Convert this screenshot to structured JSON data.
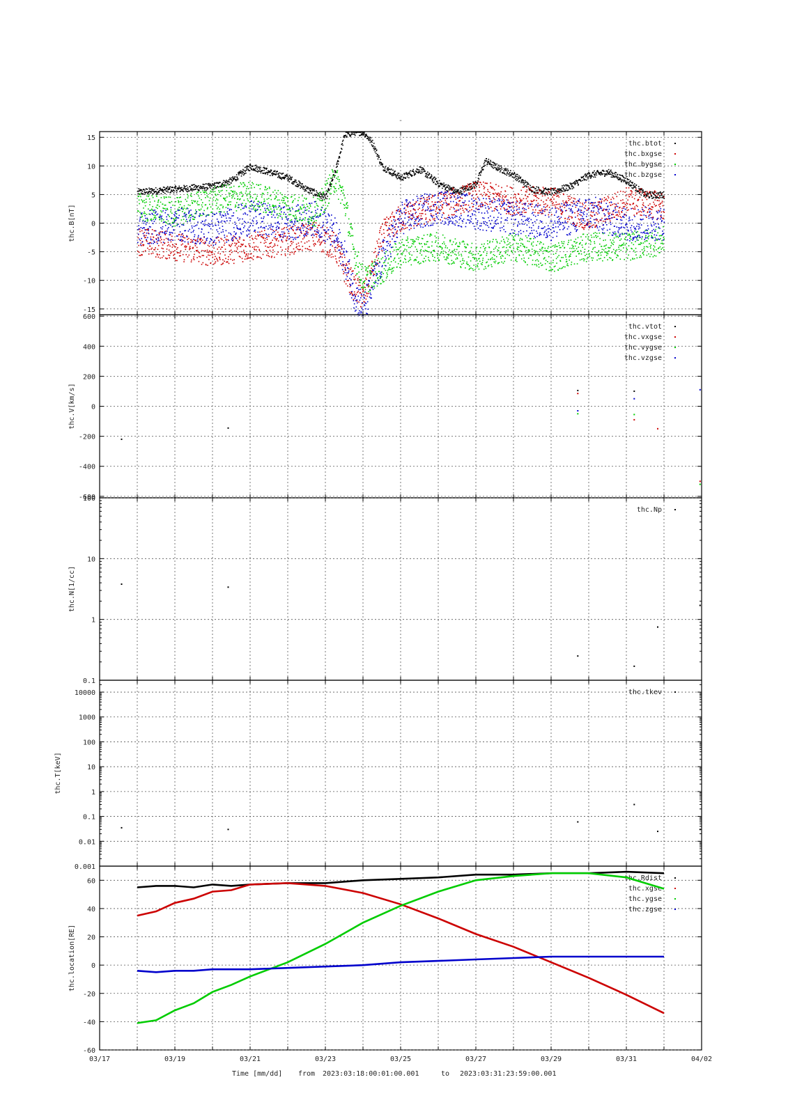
{
  "page": {
    "title": "-",
    "footer": {
      "time_label": "Time [mm/dd]",
      "from_label": "from",
      "start": "2023:03:18:00:01:00.001",
      "to_label": "to",
      "end": "2023:03:31:23:59:00.001"
    }
  },
  "colors": {
    "black": "#000000",
    "red": "#cc0000",
    "green": "#00cc00",
    "blue": "#0000cc",
    "grid": "#555555"
  },
  "chart_data": [
    {
      "type": "scatter",
      "ylabel": "thc.B[nT]",
      "xlabel": "",
      "xlim": [
        "2023-03-17",
        "2023-04-02"
      ],
      "ylim": [
        -16,
        16
      ],
      "yscale": "linear",
      "grid": true,
      "legend": "top-right",
      "yticks": [
        15,
        10,
        5,
        0,
        -5,
        -10,
        -15
      ],
      "ytick_labels": [
        "15",
        "10",
        "5",
        "0",
        "-5",
        "-10",
        "-15"
      ],
      "noisy": true,
      "series": [
        {
          "name": "thc.btot",
          "color": "#000000",
          "noise": 0.6,
          "x": [
            "2023-03-18T00:00",
            "2023-03-19T00:00",
            "2023-03-20T00:00",
            "2023-03-20T12:00",
            "2023-03-21T00:00",
            "2023-03-21T12:00",
            "2023-03-22T00:00",
            "2023-03-22T12:00",
            "2023-03-23T00:00",
            "2023-03-23T06:00",
            "2023-03-23T12:00",
            "2023-03-23T18:00",
            "2023-03-24T00:00",
            "2023-03-24T06:00",
            "2023-03-24T12:00",
            "2023-03-25T00:00",
            "2023-03-25T12:00",
            "2023-03-26T00:00",
            "2023-03-26T12:00",
            "2023-03-27T00:00",
            "2023-03-27T06:00",
            "2023-03-27T12:00",
            "2023-03-28T00:00",
            "2023-03-28T12:00",
            "2023-03-29T00:00",
            "2023-03-29T12:00",
            "2023-03-30T00:00",
            "2023-03-30T12:00",
            "2023-03-31T00:00",
            "2023-03-31T12:00",
            "2023-03-31T23:59"
          ],
          "y": [
            5.5,
            6,
            6.5,
            7.5,
            10,
            9,
            8,
            6,
            4.5,
            9,
            15.5,
            16,
            16,
            14,
            10,
            8,
            9.5,
            7,
            5.5,
            7,
            11,
            10,
            8.5,
            6,
            5.5,
            6.5,
            8.5,
            9,
            7.5,
            5,
            5
          ]
        },
        {
          "name": "thc.bxgse",
          "color": "#cc0000",
          "noise": 2.5,
          "x": [
            "2023-03-18T00:00",
            "2023-03-19T00:00",
            "2023-03-20T00:00",
            "2023-03-21T00:00",
            "2023-03-22T00:00",
            "2023-03-22T18:00",
            "2023-03-23T06:00",
            "2023-03-23T12:00",
            "2023-03-23T18:00",
            "2023-03-24T00:00",
            "2023-03-24T06:00",
            "2023-03-24T12:00",
            "2023-03-25T00:00",
            "2023-03-26T00:00",
            "2023-03-27T00:00",
            "2023-03-28T00:00",
            "2023-03-29T00:00",
            "2023-03-30T00:00",
            "2023-03-31T00:00",
            "2023-03-31T23:59"
          ],
          "y": [
            -3,
            -4,
            -5,
            -4,
            -3,
            -2,
            -4,
            -8,
            -11,
            -13,
            -8,
            -2,
            1,
            3,
            5,
            4,
            4,
            1,
            4,
            3
          ]
        },
        {
          "name": "thc.bygse",
          "color": "#00cc00",
          "noise": 2.5,
          "x": [
            "2023-03-18T00:00",
            "2023-03-19T00:00",
            "2023-03-20T00:00",
            "2023-03-21T00:00",
            "2023-03-22T00:00",
            "2023-03-22T18:00",
            "2023-03-23T06:00",
            "2023-03-23T12:00",
            "2023-03-23T18:00",
            "2023-03-24T00:00",
            "2023-03-24T12:00",
            "2023-03-25T00:00",
            "2023-03-26T00:00",
            "2023-03-27T00:00",
            "2023-03-28T00:00",
            "2023-03-29T00:00",
            "2023-03-30T00:00",
            "2023-03-31T00:00",
            "2023-03-31T23:59"
          ],
          "y": [
            3,
            2,
            4,
            5,
            3,
            2,
            8,
            4,
            -5,
            -10,
            -8,
            -5,
            -4,
            -6,
            -4,
            -6,
            -4,
            -4,
            -3
          ]
        },
        {
          "name": "thc.bzgse",
          "color": "#0000cc",
          "noise": 3,
          "x": [
            "2023-03-18T00:00",
            "2023-03-19T00:00",
            "2023-03-20T00:00",
            "2023-03-21T00:00",
            "2023-03-22T00:00",
            "2023-03-22T18:00",
            "2023-03-23T06:00",
            "2023-03-23T12:00",
            "2023-03-23T18:00",
            "2023-03-24T00:00",
            "2023-03-24T12:00",
            "2023-03-25T00:00",
            "2023-03-26T00:00",
            "2023-03-27T00:00",
            "2023-03-28T00:00",
            "2023-03-29T00:00",
            "2023-03-30T00:00",
            "2023-03-31T00:00",
            "2023-03-31T23:59"
          ],
          "y": [
            -1,
            0,
            -1,
            1,
            0,
            1,
            -2,
            -6,
            -12,
            -15,
            -6,
            1,
            3,
            2,
            1,
            0,
            2,
            0,
            0
          ]
        }
      ]
    },
    {
      "type": "scatter",
      "ylabel": "thc.V[km/s]",
      "xlabel": "",
      "xlim": [
        "2023-03-17",
        "2023-04-02"
      ],
      "ylim": [
        -610,
        610
      ],
      "yscale": "linear",
      "grid": true,
      "legend": "top-right",
      "yticks": [
        600,
        400,
        200,
        0,
        -200,
        -400,
        -600
      ],
      "ytick_labels": [
        "600",
        "400",
        "200",
        "0",
        "-200",
        "-400",
        "-600"
      ],
      "noisy": false,
      "series": [
        {
          "name": "thc.vtot",
          "color": "#000000",
          "x": [
            "2023-03-17T14:00",
            "2023-03-20T10:00",
            "2023-03-29T17:00",
            "2023-03-31T05:00"
          ],
          "y": [
            -220,
            -145,
            105,
            100
          ]
        },
        {
          "name": "thc.vxgse",
          "color": "#cc0000",
          "x": [
            "2023-03-29T17:00",
            "2023-03-31T05:00",
            "2023-03-31T20:00",
            "2023-04-01T23:00"
          ],
          "y": [
            85,
            -90,
            -150,
            -500
          ]
        },
        {
          "name": "thc.vygse",
          "color": "#00cc00",
          "x": [
            "2023-03-29T17:00",
            "2023-03-31T05:00",
            "2023-04-01T23:00"
          ],
          "y": [
            -50,
            -55,
            -520
          ]
        },
        {
          "name": "thc.vzgse",
          "color": "#0000cc",
          "x": [
            "2023-03-29T17:00",
            "2023-03-31T05:00",
            "2023-04-01T23:00"
          ],
          "y": [
            -30,
            50,
            110
          ]
        }
      ]
    },
    {
      "type": "scatter",
      "ylabel": "thc.N[1/cc]",
      "xlabel": "",
      "xlim": [
        "2023-03-17",
        "2023-04-02"
      ],
      "ylim": [
        0.1,
        100
      ],
      "yscale": "log",
      "grid": true,
      "legend": "top-right",
      "yticks": [
        100,
        10,
        1,
        0.1
      ],
      "ytick_labels": [
        "100",
        "10",
        "1",
        "0.1"
      ],
      "noisy": false,
      "series": [
        {
          "name": "thc.Np",
          "color": "#000000",
          "x": [
            "2023-03-17T14:00",
            "2023-03-20T10:00",
            "2023-03-29T17:00",
            "2023-03-31T05:00",
            "2023-03-31T20:00",
            "2023-04-01T23:00"
          ],
          "y": [
            3.8,
            3.4,
            0.25,
            0.17,
            0.75,
            1.7
          ]
        }
      ]
    },
    {
      "type": "scatter",
      "ylabel": "thc.T[keV]",
      "xlabel": "",
      "xlim": [
        "2023-03-17",
        "2023-04-02"
      ],
      "ylim": [
        0.001,
        30000
      ],
      "yscale": "log",
      "grid": true,
      "legend": "top-right",
      "yticks": [
        10000,
        1000,
        100,
        10,
        1,
        0.1,
        0.01,
        0.001
      ],
      "ytick_labels": [
        "10000",
        "1000",
        "100",
        "10",
        "1",
        "0.1",
        "0.01",
        "0.001"
      ],
      "noisy": false,
      "series": [
        {
          "name": "thc.tkev",
          "color": "#000000",
          "x": [
            "2023-03-17T14:00",
            "2023-03-20T10:00",
            "2023-03-29T17:00",
            "2023-03-31T05:00",
            "2023-03-31T20:00",
            "2023-04-01T23:00"
          ],
          "y": [
            0.035,
            0.03,
            0.06,
            0.3,
            0.025,
            0.03
          ]
        }
      ]
    },
    {
      "type": "line",
      "ylabel": "thc.location[RE]",
      "xlabel": "Time [mm/dd]",
      "xlim": [
        "2023-03-17",
        "2023-04-02"
      ],
      "ylim": [
        -60,
        70
      ],
      "yscale": "linear",
      "grid": true,
      "legend": "top-right",
      "yticks": [
        60,
        40,
        20,
        0,
        -20,
        -40,
        -60
      ],
      "ytick_labels": [
        "60",
        "40",
        "20",
        "0",
        "-20",
        "-40",
        "-60"
      ],
      "xticks": [
        "2023-03-17",
        "2023-03-19",
        "2023-03-21",
        "2023-03-23",
        "2023-03-25",
        "2023-03-27",
        "2023-03-29",
        "2023-03-31",
        "2023-04-02"
      ],
      "xtick_labels": [
        "03/17",
        "03/19",
        "03/21",
        "03/23",
        "03/25",
        "03/27",
        "03/29",
        "03/31",
        "04/02"
      ],
      "noisy": false,
      "series": [
        {
          "name": "thc.Rdist",
          "color": "#000000",
          "x": [
            "2023-03-18T00:00",
            "2023-03-18T12:00",
            "2023-03-19T00:00",
            "2023-03-19T12:00",
            "2023-03-20T00:00",
            "2023-03-20T12:00",
            "2023-03-21T00:00",
            "2023-03-22T00:00",
            "2023-03-23T00:00",
            "2023-03-24T00:00",
            "2023-03-25T00:00",
            "2023-03-26T00:00",
            "2023-03-27T00:00",
            "2023-03-28T00:00",
            "2023-03-29T00:00",
            "2023-03-30T00:00",
            "2023-03-31T00:00",
            "2023-03-31T23:59"
          ],
          "y": [
            55,
            56,
            56,
            55,
            57,
            56,
            57,
            58,
            58,
            60,
            61,
            62,
            64,
            64,
            65,
            65,
            66,
            65
          ]
        },
        {
          "name": "thc.xgse",
          "color": "#cc0000",
          "x": [
            "2023-03-18T00:00",
            "2023-03-18T12:00",
            "2023-03-19T00:00",
            "2023-03-19T12:00",
            "2023-03-20T00:00",
            "2023-03-20T12:00",
            "2023-03-21T00:00",
            "2023-03-22T00:00",
            "2023-03-23T00:00",
            "2023-03-24T00:00",
            "2023-03-25T00:00",
            "2023-03-26T00:00",
            "2023-03-27T00:00",
            "2023-03-28T00:00",
            "2023-03-29T00:00",
            "2023-03-30T00:00",
            "2023-03-31T00:00",
            "2023-03-31T23:59"
          ],
          "y": [
            35,
            38,
            44,
            47,
            52,
            53,
            57,
            58,
            56,
            51,
            43,
            33,
            22,
            13,
            2,
            -9,
            -21,
            -34
          ]
        },
        {
          "name": "thc.ygse",
          "color": "#00cc00",
          "x": [
            "2023-03-18T00:00",
            "2023-03-18T12:00",
            "2023-03-19T00:00",
            "2023-03-19T12:00",
            "2023-03-20T00:00",
            "2023-03-20T12:00",
            "2023-03-21T00:00",
            "2023-03-22T00:00",
            "2023-03-23T00:00",
            "2023-03-24T00:00",
            "2023-03-25T00:00",
            "2023-03-26T00:00",
            "2023-03-27T00:00",
            "2023-03-28T00:00",
            "2023-03-29T00:00",
            "2023-03-30T00:00",
            "2023-03-31T00:00",
            "2023-03-31T23:59"
          ],
          "y": [
            -41,
            -39,
            -32,
            -27,
            -19,
            -14,
            -8,
            2,
            15,
            30,
            42,
            52,
            60,
            63,
            65,
            65,
            62,
            54
          ]
        },
        {
          "name": "thc.zgse",
          "color": "#0000cc",
          "x": [
            "2023-03-18T00:00",
            "2023-03-18T12:00",
            "2023-03-19T00:00",
            "2023-03-19T12:00",
            "2023-03-20T00:00",
            "2023-03-20T12:00",
            "2023-03-21T00:00",
            "2023-03-22T00:00",
            "2023-03-23T00:00",
            "2023-03-24T00:00",
            "2023-03-25T00:00",
            "2023-03-26T00:00",
            "2023-03-27T00:00",
            "2023-03-28T00:00",
            "2023-03-29T00:00",
            "2023-03-30T00:00",
            "2023-03-31T00:00",
            "2023-03-31T23:59"
          ],
          "y": [
            -4,
            -5,
            -4,
            -4,
            -3,
            -3,
            -3,
            -2,
            -1,
            0,
            2,
            3,
            4,
            5,
            6,
            6,
            6,
            6
          ]
        }
      ]
    }
  ]
}
